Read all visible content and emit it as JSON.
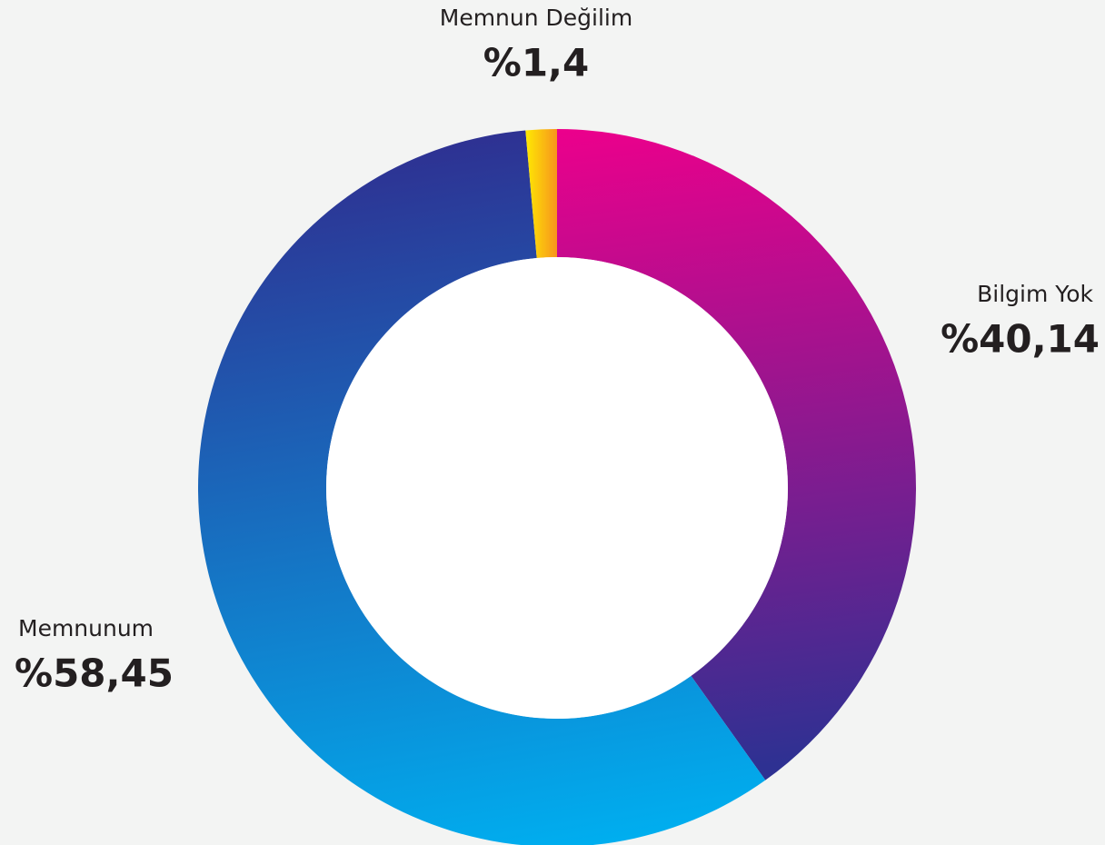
{
  "chart_data": {
    "type": "pie",
    "donut": true,
    "categories": [
      "Bilgim Yok",
      "Memnunum",
      "Memnun Değilim"
    ],
    "values": [
      40.14,
      58.45,
      1.4
    ],
    "value_labels": [
      "%40,14",
      "%58,45",
      "%1,4"
    ],
    "colors": [
      [
        "#ec008c",
        "#2e3192"
      ],
      [
        "#2e3192",
        "#00aeef"
      ],
      [
        "#fff200",
        "#f7941d"
      ]
    ]
  }
}
